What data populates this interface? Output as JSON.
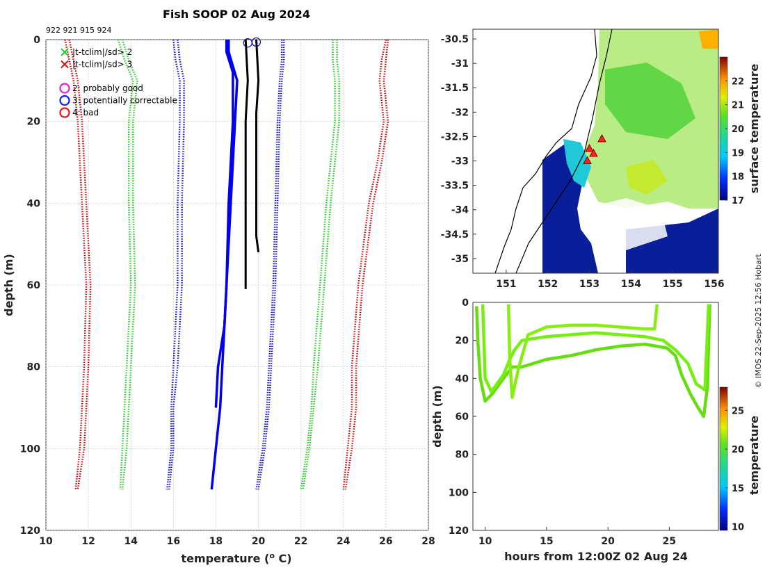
{
  "title": "Fish SOOP 02 Aug 2024",
  "copyright": "© IMOS 22-Sep-2025 12:56 Hobart",
  "chart_data": [
    {
      "type": "line",
      "name": "temperature-profile",
      "xlabel": "temperature (° C)",
      "xlabel_prefix": "temperature (",
      "xlabel_sup": "o",
      "xlabel_suffix": " C)",
      "ylabel": "depth (m)",
      "xlim": [
        10,
        28
      ],
      "ylim": [
        0,
        120
      ],
      "x_ticks": [
        "10",
        "12",
        "14",
        "16",
        "18",
        "20",
        "22",
        "24",
        "26",
        "28"
      ],
      "y_ticks": [
        "0",
        "20",
        "40",
        "60",
        "80",
        "100",
        "120"
      ],
      "grid": true,
      "drop_ids": "922 921 915 924",
      "legend": [
        {
          "marker": "x",
          "color": "#22cc22",
          "label": "|t-tclim|/sd> 2"
        },
        {
          "marker": "x",
          "color": "#dd1111",
          "label": "|t-tclim|/sd> 3"
        },
        {
          "marker": "o",
          "color": "#dd22dd",
          "label": "2: probably good"
        },
        {
          "marker": "o",
          "color": "#1122dd",
          "label": "3: potentially correctable"
        },
        {
          "marker": "o",
          "color": "#ee1111",
          "label": "4: bad"
        }
      ],
      "series": [
        {
          "name": "clim -3sd",
          "color": "#cc0000",
          "style": "dotted",
          "depth": [
            0,
            5,
            10,
            20,
            40,
            60,
            80,
            90,
            100,
            110
          ],
          "temp": [
            11.1,
            11.3,
            11.5,
            11.7,
            11.9,
            12.1,
            12.0,
            11.9,
            11.8,
            11.5
          ]
        },
        {
          "name": "clim -3sd b",
          "color": "#cc0000",
          "style": "dotted",
          "depth": [
            0,
            5,
            10,
            20,
            40,
            60,
            80,
            90,
            100,
            110
          ],
          "temp": [
            10.9,
            11.1,
            11.3,
            11.5,
            11.7,
            11.9,
            11.8,
            11.7,
            11.6,
            11.4
          ]
        },
        {
          "name": "clim -2sd",
          "color": "#22cc22",
          "style": "dotted",
          "depth": [
            0,
            5,
            10,
            20,
            40,
            60,
            80,
            90,
            100,
            110
          ],
          "temp": [
            13.6,
            13.9,
            14.3,
            14.1,
            14.1,
            14.2,
            14.0,
            13.9,
            13.8,
            13.6
          ]
        },
        {
          "name": "clim -2sd b",
          "color": "#22cc22",
          "style": "dotted",
          "depth": [
            0,
            5,
            10,
            20,
            40,
            60,
            80,
            90,
            100,
            110
          ],
          "temp": [
            13.4,
            13.7,
            14.1,
            13.9,
            13.9,
            14.0,
            13.8,
            13.7,
            13.6,
            13.5
          ]
        },
        {
          "name": "clim -1sd",
          "color": "#1111cc",
          "style": "dotted",
          "depth": [
            0,
            5,
            10,
            20,
            40,
            60,
            80,
            90,
            100,
            110
          ],
          "temp": [
            16.2,
            16.3,
            16.5,
            16.5,
            16.4,
            16.4,
            16.2,
            16.0,
            16.0,
            15.8
          ]
        },
        {
          "name": "clim -1sd b",
          "color": "#1111cc",
          "style": "dotted",
          "depth": [
            0,
            5,
            10,
            20,
            40,
            60,
            80,
            90,
            100,
            110
          ],
          "temp": [
            16.0,
            16.1,
            16.3,
            16.3,
            16.2,
            16.2,
            16.0,
            15.9,
            15.9,
            15.7
          ]
        },
        {
          "name": "clim +1sd",
          "color": "#1111cc",
          "style": "dotted",
          "depth": [
            0,
            5,
            10,
            20,
            40,
            60,
            80,
            90,
            100,
            110
          ],
          "temp": [
            21.1,
            21.1,
            21.0,
            20.9,
            20.8,
            20.7,
            20.5,
            20.4,
            20.2,
            19.9
          ]
        },
        {
          "name": "clim +1sd b",
          "color": "#1111cc",
          "style": "dotted",
          "depth": [
            0,
            5,
            10,
            20,
            40,
            60,
            80,
            90,
            100,
            110
          ],
          "temp": [
            21.2,
            21.2,
            21.1,
            21.0,
            20.9,
            20.8,
            20.6,
            20.5,
            20.3,
            20.0
          ]
        },
        {
          "name": "clim +2sd",
          "color": "#22cc22",
          "style": "dotted",
          "depth": [
            0,
            5,
            10,
            20,
            40,
            60,
            80,
            90,
            100,
            110
          ],
          "temp": [
            23.5,
            23.5,
            23.6,
            23.6,
            23.2,
            22.9,
            22.6,
            22.5,
            22.3,
            22.0
          ]
        },
        {
          "name": "clim +2sd b",
          "color": "#22cc22",
          "style": "dotted",
          "depth": [
            0,
            5,
            10,
            20,
            40,
            60,
            80,
            90,
            100,
            110
          ],
          "temp": [
            23.7,
            23.7,
            23.8,
            23.8,
            23.4,
            23.1,
            22.8,
            22.6,
            22.4,
            22.1
          ]
        },
        {
          "name": "clim +3sd",
          "color": "#cc0000",
          "style": "dotted",
          "depth": [
            0,
            5,
            10,
            20,
            30,
            40,
            60,
            80,
            90,
            100,
            110
          ],
          "temp": [
            26.0,
            25.8,
            25.7,
            25.9,
            25.6,
            25.2,
            24.7,
            24.4,
            24.4,
            24.2,
            24.0
          ]
        },
        {
          "name": "clim +3sd b",
          "color": "#cc0000",
          "style": "dotted",
          "depth": [
            0,
            5,
            10,
            20,
            30,
            40,
            60,
            80,
            90,
            100,
            110
          ],
          "temp": [
            26.1,
            26.0,
            25.9,
            26.1,
            25.8,
            25.4,
            24.9,
            24.6,
            24.6,
            24.4,
            24.1
          ]
        },
        {
          "name": "profile 922",
          "color": "#0000ee",
          "style": "solid",
          "depth": [
            0,
            3,
            10,
            20,
            40,
            60,
            70,
            80,
            90,
            100,
            110
          ],
          "temp": [
            18.6,
            18.6,
            19.0,
            18.9,
            18.7,
            18.5,
            18.4,
            18.3,
            18.2,
            18.0,
            17.8
          ]
        },
        {
          "name": "profile 921",
          "color": "#0000ee",
          "style": "solid",
          "depth": [
            0,
            3,
            8,
            20,
            40,
            60,
            70,
            80,
            90
          ],
          "temp": [
            18.5,
            18.5,
            18.8,
            18.8,
            18.6,
            18.5,
            18.4,
            18.1,
            18.0
          ]
        },
        {
          "name": "profile 915",
          "color": "#000000",
          "style": "solid",
          "depth": [
            0,
            10,
            20,
            40,
            61
          ],
          "temp": [
            19.4,
            19.5,
            19.4,
            19.4,
            19.4
          ]
        },
        {
          "name": "profile 924",
          "color": "#000000",
          "style": "solid",
          "depth": [
            0,
            10,
            18,
            30,
            48,
            52
          ],
          "temp": [
            19.9,
            20.0,
            19.9,
            19.9,
            19.9,
            20.0
          ]
        }
      ],
      "flags": [
        {
          "temp": 19.5,
          "depth": 0.8,
          "color": "#1111aa"
        },
        {
          "temp": 19.9,
          "depth": 0.6,
          "color": "#1111aa"
        }
      ]
    },
    {
      "type": "heatmap",
      "name": "surface-temperature-map",
      "xlim": [
        150.2,
        156.1
      ],
      "ylim": [
        -35.3,
        -30.3
      ],
      "x_ticks": [
        "151",
        "152",
        "153",
        "154",
        "155",
        "156"
      ],
      "y_ticks": [
        "-30.5",
        "-31",
        "-31.5",
        "-32",
        "-32.5",
        "-33",
        "-33.5",
        "-34",
        "-34.5",
        "-35"
      ],
      "colorbar_label": "surface temperature",
      "colorbar_ticks": [
        "17",
        "18",
        "19",
        "20",
        "21",
        "22"
      ],
      "colorbar_range": [
        17,
        23
      ],
      "drop_locations": [
        {
          "lon": 153.3,
          "lat": -32.55
        },
        {
          "lon": 153.0,
          "lat": -32.75
        },
        {
          "lon": 153.1,
          "lat": -32.85
        },
        {
          "lon": 152.95,
          "lat": -33.0
        }
      ]
    },
    {
      "type": "scatter",
      "name": "depth-time-section",
      "xlabel": "hours from 12:00Z 02 Aug 24",
      "ylabel": "depth (m)",
      "xlim": [
        9,
        29
      ],
      "ylim": [
        0,
        120
      ],
      "x_ticks": [
        "10",
        "15",
        "20",
        "25"
      ],
      "y_ticks": [
        "0",
        "20",
        "40",
        "60",
        "80",
        "100",
        "120"
      ],
      "colorbar_label": "temperature",
      "colorbar_ticks": [
        "10",
        "15",
        "20",
        "25"
      ],
      "colorbar_range": [
        9.5,
        28
      ],
      "tracks": [
        {
          "color": "#66dd11",
          "hours": [
            9.3,
            9.4,
            9.6,
            10.0,
            10.6,
            11.5,
            12.2,
            13,
            15,
            17,
            19,
            21,
            23,
            24.8,
            25.5,
            26.0,
            26.7,
            27.3,
            27.8,
            28.1,
            28.3
          ],
          "depth": [
            2,
            20,
            40,
            52,
            48,
            40,
            34,
            34,
            30,
            28,
            25,
            23,
            22,
            24,
            28,
            38,
            48,
            55,
            60,
            45,
            1
          ]
        },
        {
          "color": "#77ee11",
          "hours": [
            9.8,
            10.0,
            10.5,
            11.5,
            12.0,
            12.4,
            13,
            15,
            17,
            19,
            21,
            23,
            24.5,
            25.5,
            26.5,
            27.2,
            27.9,
            28.2
          ],
          "depth": [
            1,
            40,
            47,
            38,
            30,
            25,
            20,
            18,
            17,
            16,
            17,
            18,
            20,
            25,
            32,
            43,
            46,
            1
          ]
        },
        {
          "color": "#88ee11",
          "hours": [
            11.9,
            12.0,
            12.2,
            12.7,
            13.5,
            15,
            17,
            19,
            21,
            23,
            23.8,
            24.0
          ],
          "depth": [
            1,
            30,
            50,
            35,
            17,
            13,
            12,
            12,
            13,
            14,
            14,
            1
          ]
        }
      ]
    }
  ]
}
